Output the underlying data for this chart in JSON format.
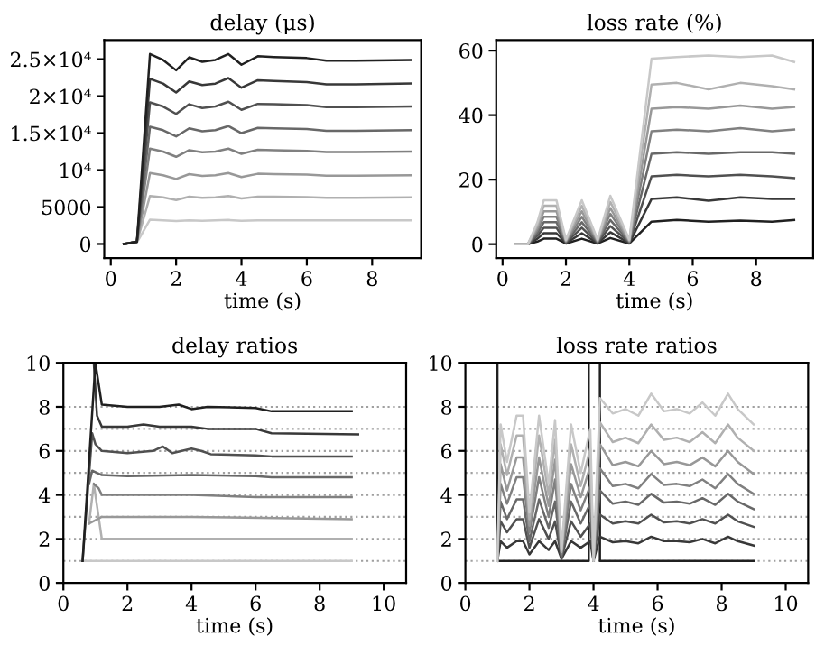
{
  "chart_data": [
    {
      "type": "line",
      "title": "delay (μs)",
      "xlabel": "time (s)",
      "xlim": [
        -0.2,
        9.5
      ],
      "xticks": [
        0,
        2,
        4,
        6,
        8
      ],
      "ylim": [
        -1900,
        27600
      ],
      "yticks": [
        0,
        5000,
        {
          "value": 10000,
          "label": "10⁴"
        },
        {
          "value": 15000,
          "label": "1.5×10⁴"
        },
        {
          "value": 20000,
          "label": "2×10⁴"
        },
        {
          "value": 25000,
          "label": "2.5×10⁴"
        }
      ],
      "x": [
        0.4,
        0.8,
        1.2,
        1.6,
        2.0,
        2.4,
        2.8,
        3.2,
        3.6,
        4.0,
        4.5,
        5.0,
        6.0,
        6.6,
        7.5,
        9.2
      ],
      "series": [
        {
          "color": "#c8c8c8",
          "values": [
            0,
            200,
            3300,
            3200,
            3100,
            3200,
            3150,
            3200,
            3250,
            3150,
            3200,
            3200,
            3200,
            3200,
            3200,
            3200
          ]
        },
        {
          "color": "#b0b0b0",
          "values": [
            0,
            250,
            6500,
            6300,
            5950,
            6400,
            6250,
            6300,
            6500,
            6150,
            6400,
            6400,
            6350,
            6250,
            6250,
            6300
          ]
        },
        {
          "color": "#989898",
          "values": [
            0,
            300,
            9600,
            9300,
            8800,
            9450,
            9200,
            9300,
            9600,
            9050,
            9500,
            9450,
            9400,
            9250,
            9250,
            9300
          ]
        },
        {
          "color": "#808080",
          "values": [
            0,
            300,
            12900,
            12500,
            11800,
            12700,
            12400,
            12500,
            12900,
            12200,
            12750,
            12700,
            12600,
            12450,
            12450,
            12500
          ]
        },
        {
          "color": "#686868",
          "values": [
            0,
            300,
            15850,
            15400,
            14550,
            15650,
            15250,
            15400,
            15950,
            15000,
            15700,
            15650,
            15550,
            15300,
            15300,
            15400
          ]
        },
        {
          "color": "#505050",
          "values": [
            0,
            300,
            19150,
            18600,
            17600,
            18900,
            18400,
            18600,
            19250,
            18150,
            18950,
            18900,
            18800,
            18500,
            18500,
            18600
          ]
        },
        {
          "color": "#383838",
          "values": [
            0,
            300,
            22350,
            21700,
            20500,
            22000,
            21500,
            21700,
            22450,
            21150,
            22150,
            22050,
            21900,
            21600,
            21600,
            21700
          ]
        },
        {
          "color": "#202020",
          "values": [
            0,
            300,
            25700,
            24900,
            23500,
            25250,
            24650,
            24900,
            25700,
            24250,
            25400,
            25300,
            25150,
            24800,
            24800,
            24900
          ]
        }
      ]
    },
    {
      "type": "line",
      "title": "loss rate (%)",
      "xlabel": "time (s)",
      "xlim": [
        -0.2,
        9.8
      ],
      "xticks": [
        0,
        2,
        4,
        6,
        8
      ],
      "ylim": [
        -4.3,
        63.3
      ],
      "yticks": [
        0,
        20,
        40,
        60
      ],
      "x": [
        0.4,
        0.8,
        1.1,
        1.3,
        1.7,
        2.0,
        2.5,
        3.0,
        3.4,
        4.0,
        4.7,
        5.5,
        6.5,
        7.5,
        8.5,
        9.2
      ],
      "series": [
        {
          "color": "#202020",
          "values": [
            0,
            0,
            0.8,
            1.7,
            1.7,
            0.2,
            1.7,
            0.2,
            1.9,
            0.2,
            7,
            7.5,
            7,
            7.3,
            7,
            7.5
          ]
        },
        {
          "color": "#383838",
          "values": [
            0,
            0,
            1.7,
            3.4,
            3.4,
            0.3,
            3.4,
            0.3,
            3.7,
            0.3,
            14,
            14.5,
            13.5,
            14.5,
            14,
            14
          ]
        },
        {
          "color": "#505050",
          "values": [
            0,
            0,
            2.6,
            5.1,
            5.1,
            0.5,
            5.1,
            0.5,
            5.6,
            0.5,
            21,
            21.5,
            21,
            21.5,
            21,
            20.5
          ]
        },
        {
          "color": "#686868",
          "values": [
            0,
            0,
            3.4,
            6.8,
            6.8,
            0.7,
            6.8,
            0.7,
            7.5,
            0.7,
            28,
            28.5,
            28,
            28.5,
            28.5,
            28
          ]
        },
        {
          "color": "#808080",
          "values": [
            0,
            0,
            4.3,
            8.5,
            8.5,
            0.9,
            8.5,
            0.9,
            9.4,
            0.9,
            35,
            35.5,
            35,
            36,
            35,
            35.5
          ]
        },
        {
          "color": "#989898",
          "values": [
            0,
            0,
            5.1,
            10.2,
            10.2,
            1,
            10.2,
            1,
            11.2,
            1,
            42,
            42.5,
            42,
            43,
            42,
            42.5
          ]
        },
        {
          "color": "#b0b0b0",
          "values": [
            0,
            0,
            6,
            11.9,
            11.9,
            1.2,
            11.9,
            1.2,
            13.1,
            1.2,
            49.5,
            50,
            48,
            50,
            49,
            48
          ]
        },
        {
          "color": "#c8c8c8",
          "values": [
            0,
            0,
            6.8,
            13.6,
            13.6,
            1.4,
            13.6,
            1.4,
            15,
            1.4,
            57.5,
            58,
            58.5,
            58,
            58.5,
            56.5
          ]
        }
      ]
    },
    {
      "type": "line",
      "title": "delay ratios",
      "xlabel": "time (s)",
      "xlim": [
        0,
        10.7
      ],
      "xticks": [
        0,
        2,
        4,
        6,
        8,
        10
      ],
      "ylim": [
        0,
        10
      ],
      "yticks": [
        0,
        2,
        4,
        6,
        8,
        10
      ],
      "ref_lines": [
        {
          "axis": "y",
          "value": 1,
          "color": "#a0a0a0",
          "line_style": "dotted"
        },
        {
          "axis": "y",
          "value": 2,
          "color": "#a0a0a0",
          "line_style": "dotted"
        },
        {
          "axis": "y",
          "value": 3,
          "color": "#a0a0a0",
          "line_style": "dotted"
        },
        {
          "axis": "y",
          "value": 4,
          "color": "#a0a0a0",
          "line_style": "dotted"
        },
        {
          "axis": "y",
          "value": 5,
          "color": "#a0a0a0",
          "line_style": "dotted"
        },
        {
          "axis": "y",
          "value": 6,
          "color": "#a0a0a0",
          "line_style": "dotted"
        },
        {
          "axis": "y",
          "value": 7,
          "color": "#a0a0a0",
          "line_style": "dotted"
        },
        {
          "axis": "y",
          "value": 8,
          "color": "#a0a0a0",
          "line_style": "dotted"
        }
      ],
      "series": [
        {
          "color": "#c8c8c8",
          "x": [
            0.6,
            9.0
          ],
          "values": [
            1,
            1
          ]
        },
        {
          "color": "#b0b0b0",
          "x": [
            0.8,
            0.95,
            1.2,
            9.0
          ],
          "values": [
            2.7,
            4.5,
            2.0,
            2.0
          ]
        },
        {
          "color": "#989898",
          "x": [
            0.8,
            1.2,
            2,
            4,
            9
          ],
          "values": [
            2.7,
            3.0,
            3.0,
            3.0,
            2.9
          ]
        },
        {
          "color": "#808080",
          "x": [
            0.95,
            1.1,
            1.2,
            2,
            4,
            6,
            9.0
          ],
          "values": [
            4.5,
            4.3,
            4.0,
            4.0,
            4.0,
            3.9,
            3.9
          ]
        },
        {
          "color": "#686868",
          "x": [
            0.8,
            0.9,
            1.2,
            2,
            4,
            6,
            6.5,
            9
          ],
          "values": [
            4.5,
            5.1,
            4.9,
            4.85,
            4.9,
            4.85,
            4.8,
            4.8
          ]
        },
        {
          "color": "#505050",
          "x": [
            0.6,
            0.9,
            1.0,
            1.2,
            2,
            2.8,
            3.1,
            3.4,
            4,
            4.3,
            4.6,
            6,
            6.5,
            9
          ],
          "values": [
            1,
            6.8,
            6.3,
            6.0,
            5.9,
            6.0,
            6.2,
            5.9,
            6.1,
            6.0,
            5.85,
            5.8,
            5.75,
            5.75
          ]
        },
        {
          "color": "#383838",
          "x": [
            0,
            0.95,
            1.05,
            1.2,
            2,
            2.5,
            3,
            4,
            4.5,
            6,
            6.5,
            9.2
          ],
          "values": [
            10,
            10,
            7.6,
            7.1,
            7.1,
            7.2,
            7.1,
            7.1,
            7.0,
            7.0,
            6.8,
            6.75
          ]
        },
        {
          "color": "#202020",
          "x": [
            0.6,
            1.0,
            1.2,
            2,
            3,
            3.6,
            4,
            4.5,
            6,
            6.5,
            9
          ],
          "values": [
            1,
            10,
            8.1,
            8.0,
            8.0,
            8.1,
            7.9,
            8.0,
            7.95,
            7.8,
            7.8
          ]
        }
      ]
    },
    {
      "type": "line",
      "title": "loss rate ratios",
      "xlabel": "time (s)",
      "xlim": [
        0,
        10.7
      ],
      "xticks": [
        0,
        2,
        4,
        6,
        8,
        10
      ],
      "ylim": [
        0,
        10
      ],
      "yticks": [
        0,
        2,
        4,
        6,
        8,
        10
      ],
      "ref_lines": [
        {
          "axis": "y",
          "value": 1,
          "color": "#a0a0a0",
          "line_style": "dotted"
        },
        {
          "axis": "y",
          "value": 2,
          "color": "#a0a0a0",
          "line_style": "dotted"
        },
        {
          "axis": "y",
          "value": 3,
          "color": "#a0a0a0",
          "line_style": "dotted"
        },
        {
          "axis": "y",
          "value": 4,
          "color": "#a0a0a0",
          "line_style": "dotted"
        },
        {
          "axis": "y",
          "value": 5,
          "color": "#a0a0a0",
          "line_style": "dotted"
        },
        {
          "axis": "y",
          "value": 6,
          "color": "#a0a0a0",
          "line_style": "dotted"
        },
        {
          "axis": "y",
          "value": 7,
          "color": "#a0a0a0",
          "line_style": "dotted"
        },
        {
          "axis": "y",
          "value": 8,
          "color": "#a0a0a0",
          "line_style": "dotted"
        }
      ],
      "x": [
        1.0,
        1.1,
        1.3,
        1.6,
        1.8,
        2.0,
        2.3,
        2.6,
        2.8,
        3.0,
        3.3,
        3.6,
        3.9,
        4.0,
        4.2,
        4.6,
        5.0,
        5.4,
        5.8,
        6.2,
        6.6,
        7.0,
        7.4,
        7.8,
        8.2,
        8.5,
        9.0
      ],
      "series": [
        {
          "color": "#202020",
          "x": [
            0,
            1,
            1,
            3.85,
            3.85,
            4.2,
            4.2,
            9
          ],
          "values": [
            10,
            10,
            1,
            1,
            10,
            10,
            1,
            1
          ]
        },
        {
          "color": "#383838",
          "values": [
            1,
            1.9,
            1.6,
            1.9,
            1.9,
            1.3,
            1.9,
            1.5,
            1.9,
            1.1,
            1.9,
            1.6,
            1.9,
            1,
            2.1,
            1.85,
            1.9,
            1.8,
            2.1,
            1.9,
            1.9,
            1.85,
            2.0,
            1.8,
            2.1,
            1.9,
            1.7
          ]
        },
        {
          "color": "#505050",
          "values": [
            1,
            2.8,
            2.3,
            2.9,
            2.9,
            1.6,
            2.9,
            2.0,
            2.8,
            1.1,
            2.8,
            2.1,
            2.7,
            1,
            3.1,
            2.7,
            2.8,
            2.7,
            3.1,
            2.75,
            2.8,
            2.7,
            2.9,
            2.7,
            3.1,
            2.8,
            2.55
          ]
        },
        {
          "color": "#686868",
          "values": [
            1,
            3.7,
            2.9,
            3.8,
            3.8,
            1.9,
            3.8,
            2.5,
            3.7,
            1.2,
            3.7,
            2.7,
            3.6,
            1,
            4.2,
            3.6,
            3.7,
            3.55,
            4.05,
            3.65,
            3.7,
            3.6,
            3.85,
            3.55,
            4.05,
            3.7,
            3.35
          ]
        },
        {
          "color": "#808080",
          "values": [
            1,
            4.5,
            3.6,
            4.8,
            4.8,
            2.3,
            4.8,
            3.0,
            4.7,
            1.3,
            4.5,
            3.3,
            4.4,
            1,
            5.2,
            4.4,
            4.5,
            4.3,
            4.95,
            4.45,
            4.5,
            4.4,
            4.7,
            4.3,
            4.95,
            4.5,
            4.05
          ]
        },
        {
          "color": "#989898",
          "values": [
            1,
            5.4,
            4.2,
            5.7,
            5.7,
            2.6,
            5.7,
            3.5,
            5.6,
            1.4,
            5.4,
            3.9,
            5.3,
            1,
            6.3,
            5.35,
            5.5,
            5.3,
            6.0,
            5.4,
            5.5,
            5.35,
            5.7,
            5.3,
            6.0,
            5.5,
            4.95
          ]
        },
        {
          "color": "#b0b0b0",
          "values": [
            1,
            6.3,
            4.9,
            6.7,
            6.7,
            2.9,
            6.7,
            4.0,
            6.5,
            1.4,
            6.3,
            4.4,
            6.1,
            1,
            7.3,
            6.4,
            6.6,
            6.35,
            7.2,
            6.5,
            6.6,
            6.4,
            6.85,
            6.35,
            7.2,
            6.6,
            6.0
          ]
        },
        {
          "color": "#c8c8c8",
          "values": [
            1,
            7.2,
            5.5,
            7.6,
            7.6,
            3.2,
            7.6,
            4.5,
            7.4,
            1.5,
            7.2,
            5.0,
            7.0,
            1,
            8.4,
            7.7,
            7.9,
            7.6,
            8.6,
            7.8,
            7.9,
            7.7,
            8.2,
            7.6,
            8.6,
            7.9,
            7.2
          ]
        }
      ]
    }
  ]
}
